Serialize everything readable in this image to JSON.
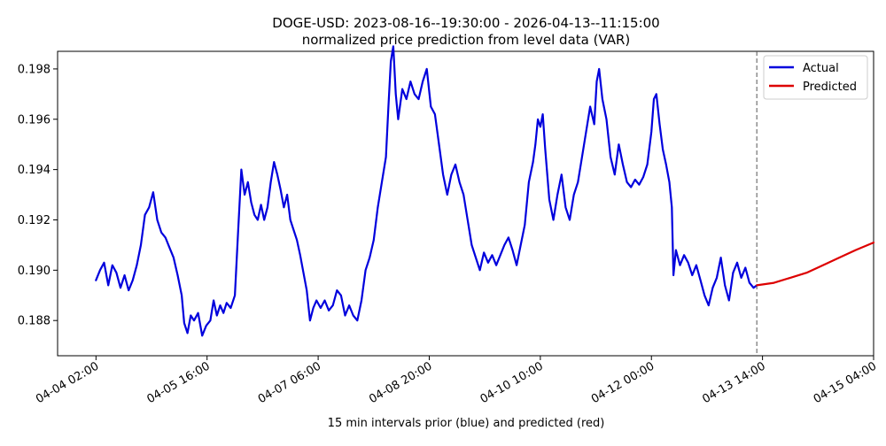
{
  "chart_data": {
    "type": "line",
    "title": "DOGE-USD: 2023-08-16--19:30:00 - 2026-04-13--11:15:00",
    "subtitle": "normalized price prediction from level data (VAR)",
    "xlabel": "15 min intervals prior (blue) and predicted (red)",
    "ylabel": "",
    "ylim": [
      0.1866,
      0.1987
    ],
    "y_ticks": [
      {
        "value": 0.188,
        "label": "0.188"
      },
      {
        "value": 0.19,
        "label": "0.190"
      },
      {
        "value": 0.192,
        "label": "0.192"
      },
      {
        "value": 0.194,
        "label": "0.194"
      },
      {
        "value": 0.196,
        "label": "0.196"
      },
      {
        "value": 0.198,
        "label": "0.198"
      }
    ],
    "x_ticks": [
      {
        "value": 0,
        "label": "04-04 02:00"
      },
      {
        "value": 136,
        "label": "04-05 16:00"
      },
      {
        "value": 272,
        "label": "04-07 06:00"
      },
      {
        "value": 408,
        "label": "04-08 20:00"
      },
      {
        "value": 544,
        "label": "04-10 10:00"
      },
      {
        "value": 680,
        "label": "04-12 00:00"
      },
      {
        "value": 816,
        "label": "04-13 14:00"
      },
      {
        "value": 952,
        "label": "04-15 04:00"
      }
    ],
    "xlim": [
      -47,
      952
    ],
    "forecast_start": 809,
    "legend_position": "top-right",
    "series": [
      {
        "name": "Actual",
        "color": "#0000dd",
        "points": [
          [
            0,
            0.1896
          ],
          [
            5,
            0.19
          ],
          [
            10,
            0.1903
          ],
          [
            15,
            0.1894
          ],
          [
            20,
            0.1902
          ],
          [
            25,
            0.1899
          ],
          [
            30,
            0.1893
          ],
          [
            35,
            0.1898
          ],
          [
            40,
            0.1892
          ],
          [
            45,
            0.1896
          ],
          [
            50,
            0.1902
          ],
          [
            55,
            0.191
          ],
          [
            60,
            0.1922
          ],
          [
            65,
            0.1925
          ],
          [
            70,
            0.1931
          ],
          [
            75,
            0.192
          ],
          [
            80,
            0.1915
          ],
          [
            85,
            0.1913
          ],
          [
            90,
            0.1909
          ],
          [
            95,
            0.1905
          ],
          [
            100,
            0.1898
          ],
          [
            105,
            0.189
          ],
          [
            108,
            0.1879
          ],
          [
            112,
            0.1875
          ],
          [
            116,
            0.1882
          ],
          [
            120,
            0.188
          ],
          [
            125,
            0.1883
          ],
          [
            130,
            0.1874
          ],
          [
            135,
            0.1878
          ],
          [
            140,
            0.188
          ],
          [
            144,
            0.1888
          ],
          [
            148,
            0.1882
          ],
          [
            152,
            0.1886
          ],
          [
            156,
            0.1883
          ],
          [
            160,
            0.1887
          ],
          [
            165,
            0.1885
          ],
          [
            170,
            0.189
          ],
          [
            174,
            0.1915
          ],
          [
            178,
            0.194
          ],
          [
            182,
            0.193
          ],
          [
            186,
            0.1935
          ],
          [
            190,
            0.1927
          ],
          [
            194,
            0.1922
          ],
          [
            198,
            0.192
          ],
          [
            202,
            0.1926
          ],
          [
            206,
            0.192
          ],
          [
            210,
            0.1925
          ],
          [
            214,
            0.1935
          ],
          [
            218,
            0.1943
          ],
          [
            222,
            0.1938
          ],
          [
            226,
            0.1932
          ],
          [
            230,
            0.1925
          ],
          [
            234,
            0.193
          ],
          [
            238,
            0.192
          ],
          [
            242,
            0.1916
          ],
          [
            246,
            0.1912
          ],
          [
            250,
            0.1906
          ],
          [
            254,
            0.1899
          ],
          [
            258,
            0.1892
          ],
          [
            262,
            0.188
          ],
          [
            266,
            0.1885
          ],
          [
            270,
            0.1888
          ],
          [
            275,
            0.1885
          ],
          [
            280,
            0.1888
          ],
          [
            285,
            0.1884
          ],
          [
            290,
            0.1886
          ],
          [
            295,
            0.1892
          ],
          [
            300,
            0.189
          ],
          [
            305,
            0.1882
          ],
          [
            310,
            0.1886
          ],
          [
            315,
            0.1882
          ],
          [
            320,
            0.188
          ],
          [
            325,
            0.1888
          ],
          [
            330,
            0.19
          ],
          [
            335,
            0.1905
          ],
          [
            340,
            0.1912
          ],
          [
            345,
            0.1925
          ],
          [
            350,
            0.1935
          ],
          [
            355,
            0.1945
          ],
          [
            358,
            0.1965
          ],
          [
            361,
            0.1983
          ],
          [
            364,
            0.1989
          ],
          [
            367,
            0.197
          ],
          [
            370,
            0.196
          ],
          [
            375,
            0.1972
          ],
          [
            380,
            0.1968
          ],
          [
            385,
            0.1975
          ],
          [
            390,
            0.197
          ],
          [
            395,
            0.1968
          ],
          [
            400,
            0.1975
          ],
          [
            405,
            0.198
          ],
          [
            410,
            0.1965
          ],
          [
            415,
            0.1962
          ],
          [
            420,
            0.195
          ],
          [
            425,
            0.1938
          ],
          [
            430,
            0.193
          ],
          [
            435,
            0.1938
          ],
          [
            440,
            0.1942
          ],
          [
            445,
            0.1935
          ],
          [
            450,
            0.193
          ],
          [
            455,
            0.192
          ],
          [
            460,
            0.191
          ],
          [
            465,
            0.1905
          ],
          [
            470,
            0.19
          ],
          [
            475,
            0.1907
          ],
          [
            480,
            0.1903
          ],
          [
            485,
            0.1906
          ],
          [
            490,
            0.1902
          ],
          [
            495,
            0.1906
          ],
          [
            500,
            0.191
          ],
          [
            505,
            0.1913
          ],
          [
            510,
            0.1908
          ],
          [
            515,
            0.1902
          ],
          [
            520,
            0.191
          ],
          [
            525,
            0.1918
          ],
          [
            530,
            0.1935
          ],
          [
            535,
            0.1943
          ],
          [
            538,
            0.195
          ],
          [
            541,
            0.196
          ],
          [
            544,
            0.1957
          ],
          [
            547,
            0.1962
          ],
          [
            550,
            0.1948
          ],
          [
            555,
            0.1928
          ],
          [
            560,
            0.192
          ],
          [
            565,
            0.193
          ],
          [
            570,
            0.1938
          ],
          [
            575,
            0.1925
          ],
          [
            580,
            0.192
          ],
          [
            585,
            0.193
          ],
          [
            590,
            0.1935
          ],
          [
            595,
            0.1945
          ],
          [
            600,
            0.1955
          ],
          [
            605,
            0.1965
          ],
          [
            610,
            0.1958
          ],
          [
            613,
            0.1975
          ],
          [
            616,
            0.198
          ],
          [
            620,
            0.1968
          ],
          [
            625,
            0.196
          ],
          [
            630,
            0.1945
          ],
          [
            635,
            0.1938
          ],
          [
            640,
            0.195
          ],
          [
            645,
            0.1942
          ],
          [
            650,
            0.1935
          ],
          [
            655,
            0.1933
          ],
          [
            660,
            0.1936
          ],
          [
            665,
            0.1934
          ],
          [
            670,
            0.1937
          ],
          [
            675,
            0.1942
          ],
          [
            680,
            0.1955
          ],
          [
            683,
            0.1968
          ],
          [
            686,
            0.197
          ],
          [
            690,
            0.1958
          ],
          [
            694,
            0.1948
          ],
          [
            698,
            0.1942
          ],
          [
            702,
            0.1935
          ],
          [
            705,
            0.1925
          ],
          [
            707,
            0.1898
          ],
          [
            710,
            0.1908
          ],
          [
            715,
            0.1902
          ],
          [
            720,
            0.1906
          ],
          [
            725,
            0.1903
          ],
          [
            730,
            0.1898
          ],
          [
            735,
            0.1902
          ],
          [
            740,
            0.1896
          ],
          [
            745,
            0.189
          ],
          [
            750,
            0.1886
          ],
          [
            755,
            0.1893
          ],
          [
            760,
            0.1897
          ],
          [
            765,
            0.1905
          ],
          [
            770,
            0.1894
          ],
          [
            775,
            0.1888
          ],
          [
            780,
            0.1899
          ],
          [
            785,
            0.1903
          ],
          [
            790,
            0.1897
          ],
          [
            795,
            0.1901
          ],
          [
            800,
            0.1895
          ],
          [
            805,
            0.1893
          ],
          [
            809,
            0.1894
          ]
        ]
      },
      {
        "name": "Predicted",
        "color": "#dd0000",
        "points": [
          [
            809,
            0.1894
          ],
          [
            830,
            0.1895
          ],
          [
            850,
            0.1897
          ],
          [
            870,
            0.1899
          ],
          [
            890,
            0.1902
          ],
          [
            910,
            0.1905
          ],
          [
            930,
            0.1908
          ],
          [
            952,
            0.1911
          ]
        ]
      }
    ]
  }
}
